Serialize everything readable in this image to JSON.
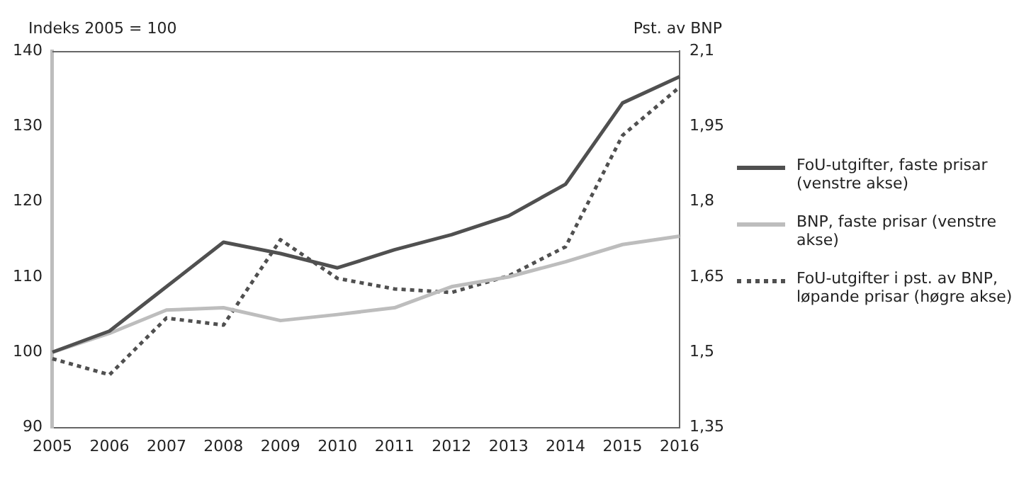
{
  "chart_data": {
    "type": "line",
    "ylabel": "Indeks 2005 = 100",
    "y2label": "Pst. av BNP",
    "categories": [
      "2005",
      "2006",
      "2007",
      "2008",
      "2009",
      "2010",
      "2011",
      "2012",
      "2013",
      "2014",
      "2015",
      "2016"
    ],
    "series": [
      {
        "name": "FoU-utgifter, faste prisar (venstre akse)",
        "color": "#505050",
        "values": [
          100,
          102.8,
          108.7,
          114.6,
          113.1,
          111.2,
          113.6,
          115.6,
          118.1,
          122.3,
          133.1,
          136.6
        ]
      },
      {
        "name": "BNP, faste prisar (venstre akse)",
        "color": "#bdbdbd",
        "values": [
          100,
          102.5,
          105.6,
          105.9,
          104.2,
          105.0,
          105.9,
          108.7,
          110.0,
          112.0,
          114.3,
          115.4
        ]
      },
      {
        "name": "FoU-utgifter i pst. av BNP, løpande prisar (høgre akse)",
        "color": "#505050",
        "axis": "y2",
        "line_style": "dotted",
        "values": [
          1.487,
          1.455,
          1.568,
          1.554,
          1.724,
          1.647,
          1.626,
          1.619,
          1.652,
          1.71,
          1.932,
          2.028
        ]
      }
    ],
    "ylim": [
      90,
      140
    ],
    "yticks": [
      90,
      100,
      110,
      120,
      130,
      140
    ],
    "y2lim": [
      1.35,
      2.1
    ],
    "y2ticks": [
      {
        "value": 1.35,
        "label": "1,35"
      },
      {
        "value": 1.5,
        "label": "1,5"
      },
      {
        "value": 1.65,
        "label": "1,65"
      },
      {
        "value": 1.8,
        "label": "1,8"
      },
      {
        "value": 1.95,
        "label": "1,95"
      },
      {
        "value": 2.1,
        "label": "2,1"
      }
    ],
    "grid": false,
    "legend": "right",
    "marker": "none",
    "line_style": "solid"
  }
}
